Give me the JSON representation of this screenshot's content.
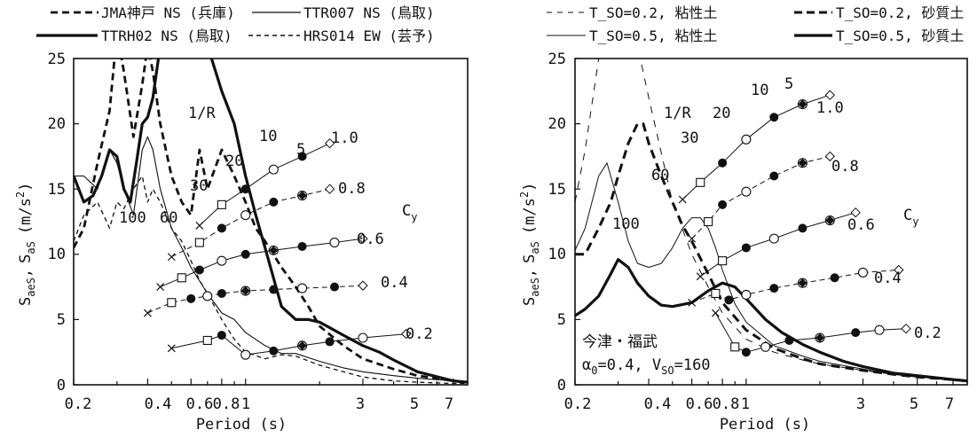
{
  "chart_data": [
    {
      "type": "line",
      "xscale": "log",
      "xlim": [
        0.2,
        8
      ],
      "ylim": [
        0,
        25
      ],
      "xlabel": "Period (s)",
      "ylabel": "S_aeS, S_aS (m/s²)",
      "ylabel_main": "S",
      "ylabel_sub": "aeS",
      "ylabel_sep": ",",
      "ylabel_main2": "S",
      "ylabel_sub2": "aS",
      "ylabel_unit": "(m/s",
      "ylabel_sup": "2",
      "ylabel_close": ")",
      "x_ticks": [
        0.2,
        0.4,
        0.6,
        0.8,
        1,
        3,
        5,
        7
      ],
      "x_tick_labels": [
        "0.2",
        "0.4",
        "0.6",
        "0.8",
        "1",
        "3",
        "5",
        "7"
      ],
      "y_ticks": [
        0,
        5,
        10,
        15,
        20,
        25
      ],
      "y_tick_labels": [
        "0",
        "5",
        "10",
        "15",
        "20",
        "25"
      ],
      "legend_position": "top",
      "series": [
        {
          "name": "JMA神戸 NS (兵庫)",
          "style": "dash-thick",
          "x": [
            0.2,
            0.22,
            0.25,
            0.28,
            0.3,
            0.32,
            0.35,
            0.38,
            0.4,
            0.42,
            0.45,
            0.5,
            0.55,
            0.6,
            0.65,
            0.7,
            0.8,
            0.9,
            1.0,
            1.1,
            1.2,
            1.4,
            1.6,
            1.8,
            2.0,
            2.5,
            3,
            4,
            5,
            7,
            8
          ],
          "y": [
            10.5,
            12,
            17,
            21,
            27,
            24,
            19,
            23,
            26,
            24,
            20,
            16,
            14,
            13,
            18,
            15,
            18,
            16,
            14,
            12,
            11,
            9,
            7.5,
            6,
            4.5,
            3,
            2,
            1.2,
            0.7,
            0.3,
            0.2
          ]
        },
        {
          "name": "TTR007 NS (鳥取)",
          "style": "solid-thin",
          "x": [
            0.2,
            0.22,
            0.25,
            0.28,
            0.3,
            0.32,
            0.35,
            0.38,
            0.4,
            0.42,
            0.45,
            0.5,
            0.55,
            0.6,
            0.7,
            0.8,
            0.9,
            1.0,
            1.2,
            1.4,
            1.6,
            2,
            2.5,
            3,
            4,
            5,
            7,
            8
          ],
          "y": [
            16,
            16,
            15,
            18,
            17,
            15,
            13,
            18,
            19,
            18,
            15,
            12,
            10.5,
            9,
            7,
            5.5,
            5,
            4,
            3,
            2.4,
            2.4,
            1.8,
            1.3,
            1,
            0.7,
            0.5,
            0.3,
            0.2
          ]
        },
        {
          "name": "TTRH02 NS (鳥取)",
          "style": "solid-thick",
          "x": [
            0.2,
            0.22,
            0.24,
            0.26,
            0.28,
            0.3,
            0.32,
            0.34,
            0.36,
            0.38,
            0.4,
            0.42,
            0.45,
            0.5,
            0.55,
            0.6,
            0.65,
            0.7,
            0.8,
            0.9,
            1.0,
            1.1,
            1.2,
            1.4,
            1.6,
            1.8,
            2,
            2.5,
            3,
            3.5,
            4,
            5,
            7,
            8
          ],
          "y": [
            16,
            14,
            14.5,
            16,
            18,
            17.5,
            15,
            14,
            17,
            20,
            20.5,
            22,
            26,
            27,
            27,
            27,
            26.5,
            26,
            22.5,
            20,
            16,
            13,
            10.5,
            6,
            5,
            5,
            4.8,
            3.8,
            3,
            2.5,
            1.9,
            1,
            0.3,
            0.2
          ]
        },
        {
          "name": "HRS014 EW (芸予)",
          "style": "dash-thin",
          "x": [
            0.2,
            0.22,
            0.25,
            0.28,
            0.3,
            0.32,
            0.35,
            0.38,
            0.4,
            0.42,
            0.45,
            0.5,
            0.55,
            0.6,
            0.65,
            0.7,
            0.8,
            0.9,
            1.0,
            1.2,
            1.4,
            1.6,
            2,
            2.5,
            3,
            4,
            5,
            7,
            8
          ],
          "y": [
            11,
            13,
            14,
            12,
            14,
            13.5,
            15,
            16,
            14,
            15,
            14,
            12,
            11,
            9.5,
            8,
            7,
            5,
            3.5,
            2.5,
            2,
            2.3,
            2.2,
            1.5,
            1,
            0.6,
            0.3,
            0.2,
            0.1,
            0.1
          ]
        }
      ],
      "cy_curves": [
        {
          "cy": "1.0",
          "x": [
            0.65,
            0.8,
            1.0,
            1.3,
            1.7,
            2.2
          ],
          "y": [
            12.2,
            13.8,
            15,
            16.5,
            17.5,
            18.5
          ]
        },
        {
          "cy": "0.8",
          "x": [
            0.5,
            0.65,
            0.8,
            1.0,
            1.3,
            1.7,
            2.2
          ],
          "y": [
            9.8,
            10.9,
            12,
            13,
            14,
            14.5,
            15
          ]
        },
        {
          "cy": "0.6",
          "x": [
            0.45,
            0.55,
            0.65,
            0.8,
            1.0,
            1.3,
            1.7,
            2.3,
            3
          ],
          "y": [
            7.5,
            8.2,
            8.8,
            9.5,
            10,
            10.3,
            10.6,
            10.9,
            11.2
          ]
        },
        {
          "cy": "0.4",
          "x": [
            0.4,
            0.5,
            0.6,
            0.7,
            0.8,
            1.0,
            1.3,
            1.7,
            2.3,
            3
          ],
          "y": [
            5.5,
            6.3,
            6.6,
            6.8,
            7.0,
            7.2,
            7.3,
            7.4,
            7.5,
            7.6
          ]
        },
        {
          "cy": "0.2",
          "x": [
            0.5,
            0.7,
            0.8,
            1.0,
            1.3,
            1.7,
            2.2,
            3,
            4.5
          ],
          "y": [
            2.8,
            3.4,
            3.8,
            2.3,
            2.6,
            3.0,
            3.3,
            3.6,
            3.9
          ]
        }
      ],
      "r_line_points": [
        {
          "R": "100",
          "x": [
            0.5,
            0.45
          ],
          "y": [
            11,
            11.5
          ]
        },
        {
          "R": "60",
          "x": [
            0.55,
            0.5
          ],
          "y": [
            8.7,
            9.2
          ]
        },
        {
          "R": "30",
          "x": [
            0.65,
            0.6
          ],
          "y": [
            6.5,
            7
          ]
        },
        {
          "R": "20",
          "x": [
            0.8,
            0.75
          ],
          "y": [
            4.3,
            4.6
          ]
        },
        {
          "R": "10",
          "x": [
            1.35,
            1.3
          ],
          "y": [
            2.2,
            2.5
          ]
        }
      ],
      "annotations": {
        "r_label": "1/R",
        "r_values": [
          "100",
          "60",
          "30",
          "20",
          "10",
          "5"
        ],
        "cy_label": "C",
        "cy_sub": "y",
        "cy_values": [
          "1.0",
          "0.8",
          "0.6",
          "0.4",
          "0.2"
        ]
      }
    },
    {
      "type": "line",
      "xscale": "log",
      "xlim": [
        0.2,
        8
      ],
      "ylim": [
        0,
        25
      ],
      "xlabel": "Period (s)",
      "ylabel": "S_aeS, S_aS (m/s²)",
      "x_ticks": [
        0.2,
        0.4,
        0.6,
        0.8,
        1,
        3,
        5,
        7
      ],
      "x_tick_labels": [
        "0.2",
        "0.4",
        "0.6",
        "0.8",
        "1",
        "3",
        "5",
        "7"
      ],
      "y_ticks": [
        0,
        5,
        10,
        15,
        20,
        25
      ],
      "y_tick_labels": [
        "0",
        "5",
        "10",
        "15",
        "20",
        "25"
      ],
      "legend_position": "top",
      "series": [
        {
          "name": "T_SO=0.2, 粘性土",
          "style": "dash-thin",
          "x": [
            0.2,
            0.22,
            0.25,
            0.27,
            0.3,
            0.35,
            0.4,
            0.5,
            0.6,
            0.7,
            0.8,
            1.0,
            1.3,
            1.7,
            2,
            3,
            4,
            5,
            7,
            8
          ],
          "y": [
            14,
            18,
            25,
            30,
            30,
            27,
            22,
            14,
            10,
            7.5,
            5.5,
            3.5,
            2.5,
            1.9,
            1.6,
            1.1,
            0.8,
            0.6,
            0.4,
            0.3
          ]
        },
        {
          "name": "T_SO=0.2, 砂質土",
          "style": "dash-thick",
          "x": [
            0.2,
            0.22,
            0.25,
            0.28,
            0.3,
            0.33,
            0.36,
            0.38,
            0.4,
            0.45,
            0.5,
            0.55,
            0.6,
            0.7,
            0.8,
            1.0,
            1.3,
            1.7,
            2,
            3,
            4,
            5,
            7,
            8
          ],
          "y": [
            10,
            10,
            12,
            14,
            16,
            18.5,
            20,
            20,
            18.5,
            16,
            14,
            12.2,
            11,
            8.5,
            6.3,
            4.2,
            2.8,
            2.0,
            1.6,
            1.1,
            0.8,
            0.6,
            0.4,
            0.3
          ]
        },
        {
          "name": "T_SO=0.5, 粘性土",
          "style": "solid-thin",
          "x": [
            0.2,
            0.22,
            0.25,
            0.27,
            0.3,
            0.33,
            0.36,
            0.4,
            0.45,
            0.5,
            0.55,
            0.6,
            0.65,
            0.7,
            0.75,
            0.8,
            0.9,
            1.0,
            1.3,
            1.7,
            2,
            3,
            4,
            5,
            7,
            8
          ],
          "y": [
            10.3,
            12,
            16,
            17,
            14,
            11,
            9.3,
            9,
            9.3,
            10.5,
            12,
            12.8,
            12.8,
            12,
            10.5,
            8.8,
            6.2,
            4.8,
            3.0,
            2.2,
            1.8,
            1.2,
            0.8,
            0.6,
            0.4,
            0.3
          ]
        },
        {
          "name": "T_SO=0.5, 砂質土",
          "style": "solid-thick",
          "x": [
            0.2,
            0.22,
            0.25,
            0.28,
            0.3,
            0.33,
            0.36,
            0.4,
            0.45,
            0.5,
            0.6,
            0.7,
            0.8,
            0.9,
            1.0,
            1.2,
            1.4,
            1.7,
            2,
            2.5,
            3,
            4,
            5,
            7,
            8
          ],
          "y": [
            5.3,
            5.8,
            6.8,
            8.5,
            9.6,
            9,
            7.8,
            6.8,
            6.1,
            6.0,
            6.3,
            7.2,
            7.8,
            7.5,
            6.6,
            5,
            4,
            3.1,
            2.5,
            1.8,
            1.4,
            0.9,
            0.7,
            0.4,
            0.3
          ]
        }
      ],
      "cy_curves": [
        {
          "cy": "1.0",
          "x": [
            0.55,
            0.65,
            0.8,
            1.0,
            1.3,
            1.7,
            2.2
          ],
          "y": [
            14.2,
            15.5,
            17,
            18.8,
            20.5,
            21.5,
            22.2
          ]
        },
        {
          "cy": "0.8",
          "x": [
            0.6,
            0.7,
            0.8,
            1.0,
            1.3,
            1.7,
            2.2
          ],
          "y": [
            11.2,
            12.5,
            13.8,
            14.8,
            16,
            17,
            17.5
          ]
        },
        {
          "cy": "0.6",
          "x": [
            0.65,
            0.8,
            1.0,
            1.3,
            1.7,
            2.2,
            2.8
          ],
          "y": [
            8.3,
            9.5,
            10.5,
            11.2,
            12,
            12.6,
            13.2
          ]
        },
        {
          "cy": "0.4",
          "x": [
            0.6,
            0.75,
            0.85,
            1.0,
            1.3,
            1.7,
            2.3,
            3,
            4.2
          ],
          "y": [
            6.3,
            7,
            6.5,
            6.9,
            7.4,
            7.8,
            8.2,
            8.6,
            8.8
          ]
        },
        {
          "cy": "0.2",
          "x": [
            0.75,
            0.9,
            1.0,
            1.2,
            1.5,
            2,
            2.8,
            3.5,
            4.5
          ],
          "y": [
            5.5,
            2.9,
            2.5,
            2.9,
            3.4,
            3.6,
            4.0,
            4.2,
            4.3
          ]
        }
      ],
      "annotations": {
        "r_label": "1/R",
        "r_values": [
          "100",
          "60",
          "30",
          "20",
          "10",
          "5"
        ],
        "cy_label": "C",
        "cy_sub": "y",
        "cy_values": [
          "1.0",
          "0.8",
          "0.6",
          "0.4",
          "0.2"
        ],
        "site": "今津・福武",
        "alpha": "α",
        "alpha_sub": "0",
        "alpha_eq": "=0.4, V",
        "vs_sub": "SO",
        "vs_eq": "=160"
      }
    }
  ]
}
